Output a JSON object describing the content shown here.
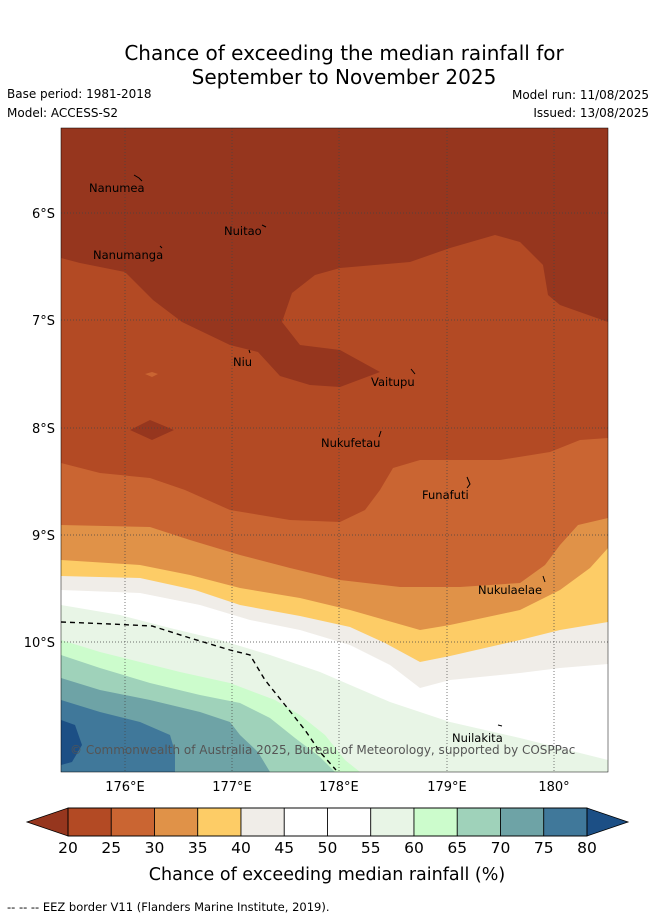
{
  "header": {
    "title_line1": "Chance of exceeding the median rainfall for",
    "title_line2": "September to November 2025",
    "base_period": "Base period: 1981-2018",
    "model": "Model: ACCESS-S2",
    "model_run": "Model run: 11/08/2025",
    "issued": "Issued: 13/08/2025"
  },
  "map": {
    "lat_labels": [
      "6°S",
      "7°S",
      "8°S",
      "9°S",
      "10°S"
    ],
    "lon_labels": [
      "176°E",
      "177°E",
      "178°E",
      "179°E",
      "180°"
    ],
    "places": [
      "Nanumea",
      "Nuitao",
      "Nanumanga",
      "Niu",
      "Vaitupu",
      "Nukufetau",
      "Funafuti",
      "Nukulaelae",
      "Nuilakita"
    ],
    "copyright": "© Commonwealth of Australia 2025, Bureau of Meteorology, supported by COSPPac"
  },
  "colorbar": {
    "ticks": [
      "20",
      "25",
      "30",
      "35",
      "40",
      "45",
      "50",
      "55",
      "60",
      "65",
      "70",
      "75",
      "80"
    ],
    "colors": [
      "#96361e",
      "#b34a24",
      "#ca6532",
      "#e09248",
      "#fdcc66",
      "#f0ede8",
      "#ffffff",
      "#ffffff",
      "#e8f5e6",
      "#ccfccc",
      "#9fd2ba",
      "#6ea3a6",
      "#40789a"
    ],
    "under_color": "#96361e",
    "over_color": "#1c4f85",
    "label": "Chance of exceeding median rainfall (%)"
  },
  "footer": {
    "eez_note": "--  --  -- EEZ border V11 (Flanders Marine Institute, 2019)."
  }
}
